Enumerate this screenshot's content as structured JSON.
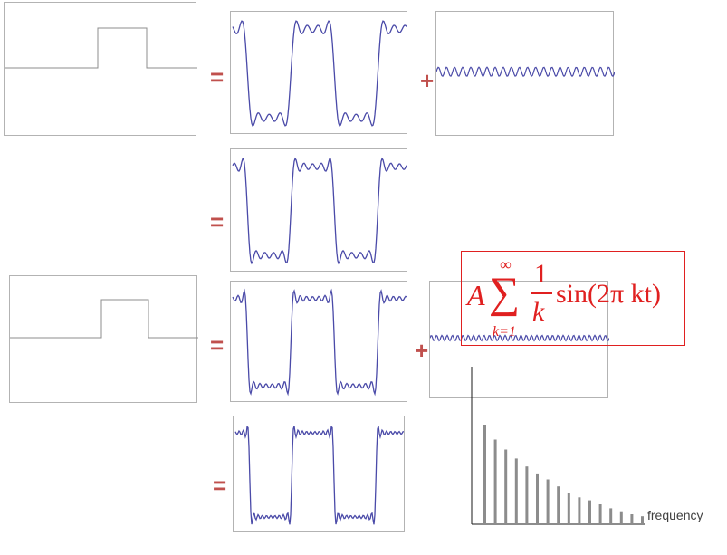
{
  "operators": {
    "equals": "=",
    "plus": "+"
  },
  "formula": {
    "amplitude": "A",
    "sum_symbol": "∑",
    "upper_limit": "∞",
    "lower_limit": "k=1",
    "fraction_numerator": "1",
    "fraction_denominator": "k",
    "term": "sin(2π kt)"
  },
  "spectrum": {
    "xlabel": "frequency",
    "amplitudes": [
      1.0,
      0.85,
      0.75,
      0.66,
      0.58,
      0.51,
      0.45,
      0.38,
      0.31,
      0.27,
      0.24,
      0.2,
      0.16,
      0.13,
      0.1,
      0.08
    ]
  },
  "colors": {
    "wave": "#4a4aa8",
    "operator": "#c0504d",
    "formula": "#e02020",
    "frame": "#b3b3b3",
    "bars": "#8c8c8c"
  }
}
